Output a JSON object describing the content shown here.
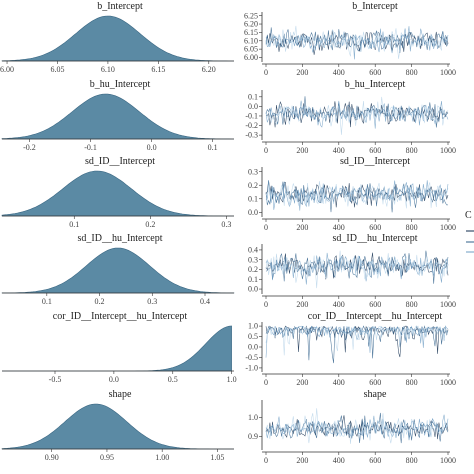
{
  "chart_data": [
    {
      "type": "area",
      "title": "b_Intercept",
      "ticks": [
        "6.00",
        "6.05",
        "6.10",
        "6.15",
        "6.20"
      ],
      "xlim": [
        5.995,
        6.225
      ],
      "mean": 6.1,
      "sd": 0.032
    },
    {
      "type": "line",
      "title": "b_Intercept",
      "xticks": [
        "0",
        "200",
        "400",
        "600",
        "800",
        "1000"
      ],
      "yticks": [
        "6.00",
        "6.05",
        "6.10",
        "6.15",
        "6.20",
        "6.25"
      ],
      "ylim": [
        5.985,
        6.26
      ],
      "xlim": [
        0,
        1000
      ],
      "mean": 6.1,
      "sd": 0.032
    },
    {
      "type": "area",
      "title": "b_hu_Intercept",
      "ticks": [
        "-0.2",
        "-0.1",
        "0.0",
        "0.1"
      ],
      "xlim": [
        -0.245,
        0.135
      ],
      "mean": -0.075,
      "sd": 0.055
    },
    {
      "type": "line",
      "title": "b_hu_Intercept",
      "xticks": [
        "0",
        "200",
        "400",
        "600",
        "800",
        "1000"
      ],
      "yticks": [
        "-0.3",
        "-0.2",
        "-0.1",
        "0.0",
        "0.1"
      ],
      "ylim": [
        -0.33,
        0.15
      ],
      "xlim": [
        0,
        1000
      ],
      "mean": -0.075,
      "sd": 0.055
    },
    {
      "type": "area",
      "title": "sd_ID__Intercept",
      "ticks": [
        "0.1",
        "0.2",
        "0.3"
      ],
      "xlim": [
        0.005,
        0.31
      ],
      "mean": 0.13,
      "sd": 0.045
    },
    {
      "type": "line",
      "title": "sd_ID__Intercept",
      "xticks": [
        "0",
        "200",
        "400",
        "600",
        "800",
        "1000"
      ],
      "yticks": [
        "0.0",
        "0.1",
        "0.2",
        "0.3"
      ],
      "ylim": [
        -0.02,
        0.32
      ],
      "xlim": [
        0,
        1000
      ],
      "mean": 0.13,
      "sd": 0.045
    },
    {
      "type": "area",
      "title": "sd_ID__hu_Intercept",
      "ticks": [
        "0.1",
        "0.2",
        "0.3",
        "0.4"
      ],
      "xlim": [
        0.015,
        0.455
      ],
      "mean": 0.235,
      "sd": 0.06
    },
    {
      "type": "line",
      "title": "sd_ID__hu_Intercept",
      "xticks": [
        "0",
        "200",
        "400",
        "600",
        "800",
        "1000"
      ],
      "yticks": [
        "0.0",
        "0.1",
        "0.2",
        "0.3",
        "0.4"
      ],
      "ylim": [
        -0.03,
        0.44
      ],
      "xlim": [
        0,
        1000
      ],
      "mean": 0.235,
      "sd": 0.06
    },
    {
      "type": "area",
      "title": "cor_ID__Intercept__hu_Intercept",
      "ticks": [
        "-0.5",
        "0.0",
        "0.5",
        "1.0"
      ],
      "xlim": [
        -0.95,
        1.02
      ],
      "mean": 0.85,
      "sd": 0.2
    },
    {
      "type": "line",
      "title": "cor_ID__Intercept__hu_Intercept",
      "xticks": [
        "0",
        "200",
        "400",
        "600",
        "800",
        "1000"
      ],
      "yticks": [
        "-1.0",
        "-0.5",
        "0.0",
        "0.5",
        "1.0"
      ],
      "ylim": [
        -1.1,
        1.1
      ],
      "xlim": [
        0,
        1000
      ],
      "mean": 0.85,
      "sd": 0.2
    },
    {
      "type": "area",
      "title": "shape",
      "ticks": [
        "0.90",
        "0.95",
        "1.00",
        "1.05"
      ],
      "xlim": [
        0.855,
        1.065
      ],
      "mean": 0.94,
      "sd": 0.028
    },
    {
      "type": "line",
      "title": "shape",
      "xticks": [
        "0",
        "200",
        "400",
        "600",
        "800",
        "1000"
      ],
      "yticks": [
        "0.9",
        "1.0"
      ],
      "ylim": [
        0.84,
        1.08
      ],
      "xlim": [
        0,
        1000
      ],
      "mean": 0.94,
      "sd": 0.028
    }
  ],
  "legend_fragment": "C",
  "colors": {
    "density_fill": "#5b8aa4",
    "density_stroke": "#3a6783",
    "chains": [
      "#0f2b4c",
      "#2f5f8a",
      "#6d9cc3",
      "#b7d3e9"
    ]
  }
}
